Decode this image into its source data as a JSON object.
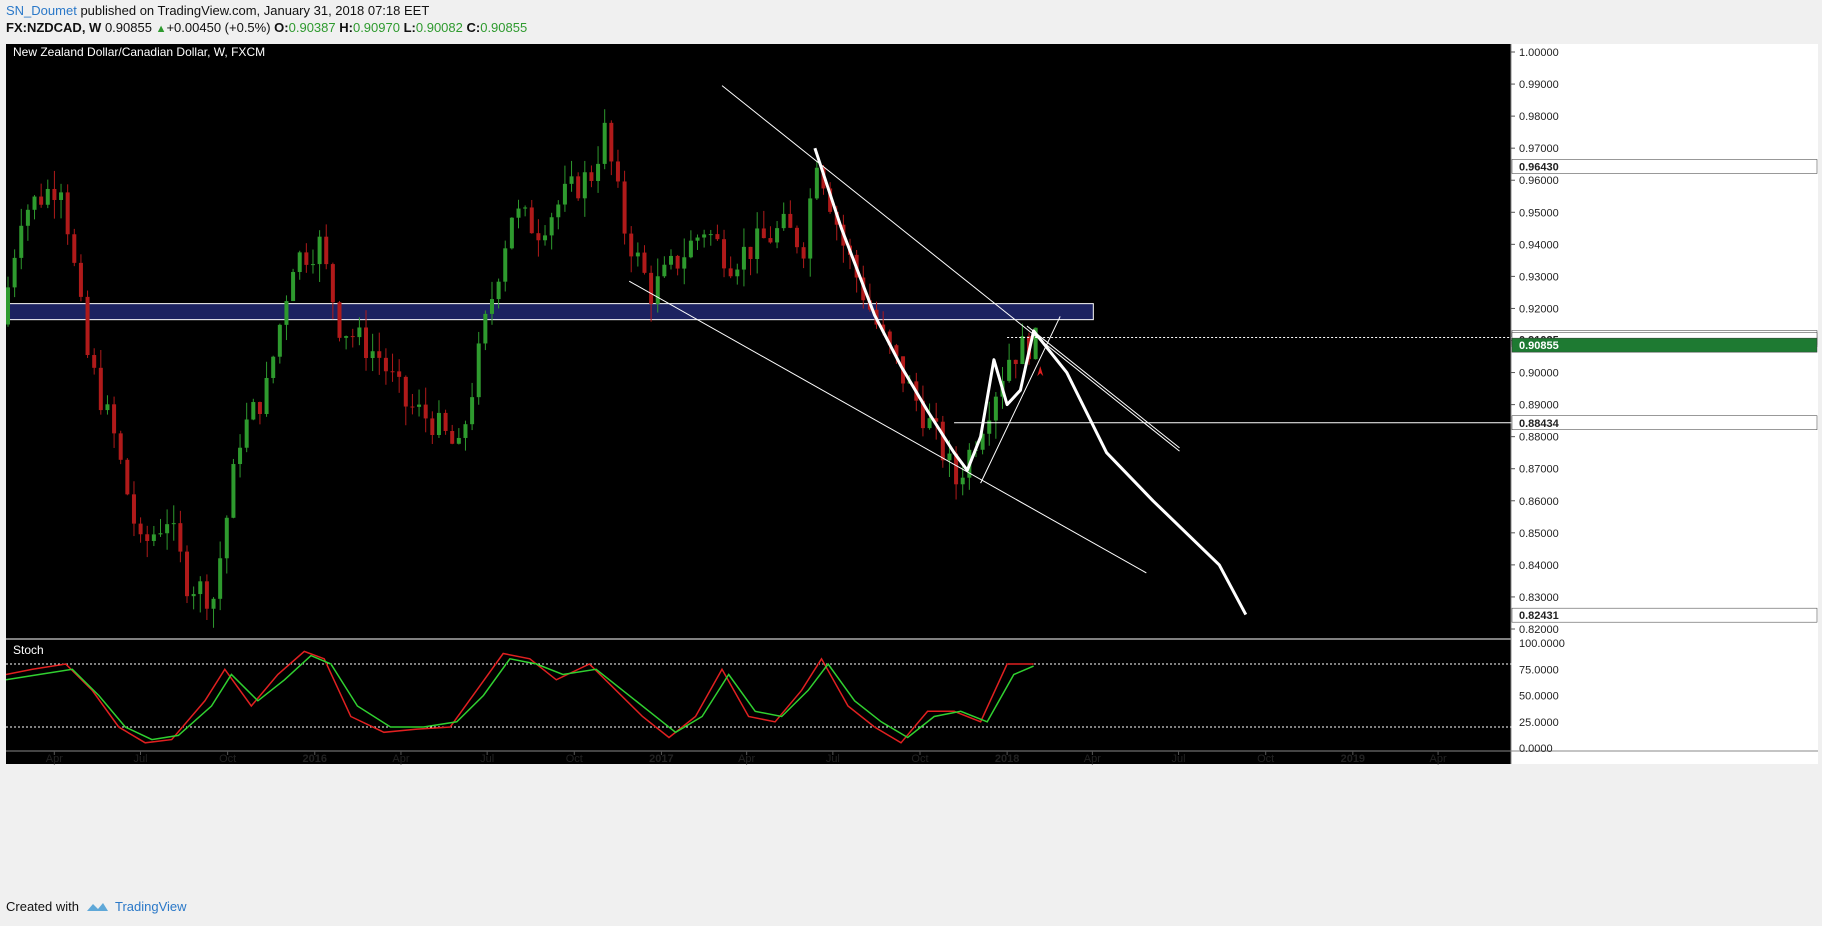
{
  "header": {
    "author": "SN_Doumet",
    "published": "published on TradingView.com, January 31, 2018 07:18 EET",
    "symbol": "FX:NZDCAD, W",
    "last": "0.90855",
    "change": "+0.00450 (+0.5%)",
    "o_label": "O:",
    "o_value": "0.90387",
    "h_label": "H:",
    "h_value": "0.90970",
    "l_label": "L:",
    "l_value": "0.90082",
    "c_label": "C:",
    "c_value": "0.90855"
  },
  "footer": {
    "created_with": "Created with",
    "brand": "TradingView"
  },
  "colors": {
    "background": "#000000",
    "up": "#2e9a2e",
    "down": "#b01a1a",
    "zone": "#1c2260",
    "axis_bg": "#ffffff",
    "last_price": "#1e7a32",
    "stoch_k": "#e02020",
    "stoch_d": "#30d030"
  },
  "chart_data": {
    "type": "candlestick",
    "title": "New Zealand Dollar/Canadian Dollar, W, FXCM",
    "x_range": [
      "2015-02-09",
      "2019-06-17"
    ],
    "y_range": [
      0.8175,
      1.0025
    ],
    "y_ticks": [
      "1.00000",
      "0.99000",
      "0.98000",
      "0.97000",
      "0.96000",
      "0.95000",
      "0.94000",
      "0.93000",
      "0.92000",
      "0.91000",
      "0.90000",
      "0.89000",
      "0.88000",
      "0.87000",
      "0.86000",
      "0.85000",
      "0.84000",
      "0.83000",
      "0.82000"
    ],
    "x_ticks": [
      {
        "date": "2015-04-01",
        "label": "Apr"
      },
      {
        "date": "2015-07-01",
        "label": "Jul"
      },
      {
        "date": "2015-10-01",
        "label": "Oct"
      },
      {
        "date": "2016-01-01",
        "label": "2016"
      },
      {
        "date": "2016-04-01",
        "label": "Apr"
      },
      {
        "date": "2016-07-01",
        "label": "Jul"
      },
      {
        "date": "2016-10-01",
        "label": "Oct"
      },
      {
        "date": "2017-01-01",
        "label": "2017"
      },
      {
        "date": "2017-04-01",
        "label": "Apr"
      },
      {
        "date": "2017-07-01",
        "label": "Jul"
      },
      {
        "date": "2017-10-01",
        "label": "Oct"
      },
      {
        "date": "2018-01-01",
        "label": "2018"
      },
      {
        "date": "2018-04-01",
        "label": "Apr"
      },
      {
        "date": "2018-07-01",
        "label": "Jul"
      },
      {
        "date": "2018-10-01",
        "label": "Oct"
      },
      {
        "date": "2019-01-01",
        "label": "2019"
      },
      {
        "date": "2019-04-01",
        "label": "Apr"
      }
    ],
    "price_path": [
      [
        "2015-02-09",
        0.915
      ],
      [
        "2015-03-02",
        0.95
      ],
      [
        "2015-04-13",
        0.96
      ],
      [
        "2015-05-11",
        0.905
      ],
      [
        "2015-06-08",
        0.88
      ],
      [
        "2015-07-06",
        0.845
      ],
      [
        "2015-08-03",
        0.855
      ],
      [
        "2015-08-24",
        0.835
      ],
      [
        "2015-09-21",
        0.83
      ],
      [
        "2015-10-19",
        0.88
      ],
      [
        "2015-11-16",
        0.895
      ],
      [
        "2015-12-14",
        0.935
      ],
      [
        "2016-01-11",
        0.94
      ],
      [
        "2016-02-01",
        0.915
      ],
      [
        "2016-03-14",
        0.905
      ],
      [
        "2016-04-11",
        0.89
      ],
      [
        "2016-05-09",
        0.885
      ],
      [
        "2016-06-06",
        0.875
      ],
      [
        "2016-07-04",
        0.915
      ],
      [
        "2016-08-01",
        0.95
      ],
      [
        "2016-08-29",
        0.945
      ],
      [
        "2016-09-26",
        0.955
      ],
      [
        "2016-10-24",
        0.962
      ],
      [
        "2016-11-07",
        0.975
      ],
      [
        "2016-11-28",
        0.945
      ],
      [
        "2016-12-26",
        0.925
      ],
      [
        "2017-01-23",
        0.935
      ],
      [
        "2017-02-20",
        0.945
      ],
      [
        "2017-03-20",
        0.935
      ],
      [
        "2017-04-17",
        0.94
      ],
      [
        "2017-05-15",
        0.945
      ],
      [
        "2017-06-05",
        0.94
      ],
      [
        "2017-06-19",
        0.968
      ],
      [
        "2017-07-17",
        0.94
      ],
      [
        "2017-08-07",
        0.925
      ],
      [
        "2017-08-28",
        0.91
      ],
      [
        "2017-09-25",
        0.895
      ],
      [
        "2017-10-23",
        0.88
      ],
      [
        "2017-11-13",
        0.866
      ],
      [
        "2017-11-27",
        0.875
      ],
      [
        "2017-12-11",
        0.885
      ],
      [
        "2017-12-25",
        0.895
      ],
      [
        "2018-01-08",
        0.905
      ],
      [
        "2018-01-29",
        0.909
      ]
    ],
    "horizontal_line": {
      "value": 0.88434,
      "label": "0.88434"
    },
    "horizontal_dotted": {
      "value": 0.91094,
      "label": "0.91094"
    },
    "marker_label": {
      "value": 0.91025,
      "label": "0.91025"
    },
    "last_price": {
      "value": 0.90855,
      "label": "0.90855"
    },
    "projection_label": {
      "value": 0.82431,
      "label": "0.82431"
    },
    "extra_label": {
      "value": 0.9643,
      "label": "0.96430"
    },
    "zone": {
      "from": "2015-02-09",
      "to": "2018-04-02",
      "low": 0.9165,
      "high": 0.9215
    },
    "trendlines": [
      {
        "x1": "2017-03-06",
        "y1": 0.9895,
        "x2": "2018-07-02",
        "y2": 0.8755
      },
      {
        "x1": "2016-11-28",
        "y1": 0.9285,
        "x2": "2018-05-28",
        "y2": 0.8375
      },
      {
        "x1": "2017-12-04",
        "y1": 0.8655,
        "x2": "2018-02-26",
        "y2": 0.9175
      },
      {
        "x1": "2018-01-22",
        "y1": 0.9145,
        "x2": "2018-07-02",
        "y2": 0.8765
      }
    ],
    "projection_path": [
      [
        "2017-06-12",
        0.97
      ],
      [
        "2017-07-10",
        0.945
      ],
      [
        "2017-08-14",
        0.918
      ],
      [
        "2017-09-11",
        0.902
      ],
      [
        "2017-10-09",
        0.888
      ],
      [
        "2017-11-06",
        0.875
      ],
      [
        "2017-11-20",
        0.8695
      ],
      [
        "2017-12-04",
        0.88
      ],
      [
        "2017-12-18",
        0.904
      ],
      [
        "2018-01-01",
        0.89
      ],
      [
        "2018-01-15",
        0.8945
      ],
      [
        "2018-01-29",
        0.913
      ],
      [
        "2018-03-05",
        0.9
      ],
      [
        "2018-04-16",
        0.875
      ],
      [
        "2018-06-04",
        0.86
      ],
      [
        "2018-08-13",
        0.84
      ],
      [
        "2018-09-10",
        0.8245
      ]
    ],
    "stochastic": {
      "label": "Stoch",
      "y_ticks": [
        "100.0000",
        "75.0000",
        "50.0000",
        "25.0000",
        "0.0000"
      ],
      "levels": [
        80,
        20
      ],
      "k": [
        [
          "2015-02-09",
          70
        ],
        [
          "2015-03-09",
          75
        ],
        [
          "2015-04-13",
          80
        ],
        [
          "2015-05-11",
          55
        ],
        [
          "2015-06-08",
          20
        ],
        [
          "2015-07-06",
          5
        ],
        [
          "2015-08-03",
          8
        ],
        [
          "2015-09-07",
          45
        ],
        [
          "2015-09-28",
          75
        ],
        [
          "2015-10-26",
          40
        ],
        [
          "2015-11-23",
          70
        ],
        [
          "2015-12-21",
          92
        ],
        [
          "2016-01-11",
          85
        ],
        [
          "2016-02-08",
          30
        ],
        [
          "2016-03-14",
          15
        ],
        [
          "2016-04-18",
          18
        ],
        [
          "2016-05-23",
          20
        ],
        [
          "2016-06-20",
          55
        ],
        [
          "2016-07-18",
          90
        ],
        [
          "2016-08-15",
          85
        ],
        [
          "2016-09-12",
          65
        ],
        [
          "2016-10-17",
          80
        ],
        [
          "2016-11-14",
          55
        ],
        [
          "2016-12-12",
          30
        ],
        [
          "2017-01-09",
          10
        ],
        [
          "2017-02-06",
          30
        ],
        [
          "2017-03-06",
          75
        ],
        [
          "2017-04-03",
          30
        ],
        [
          "2017-05-01",
          25
        ],
        [
          "2017-05-29",
          55
        ],
        [
          "2017-06-19",
          85
        ],
        [
          "2017-07-17",
          40
        ],
        [
          "2017-08-14",
          20
        ],
        [
          "2017-09-11",
          5
        ],
        [
          "2017-10-09",
          35
        ],
        [
          "2017-11-06",
          35
        ],
        [
          "2017-12-04",
          25
        ],
        [
          "2018-01-01",
          80
        ],
        [
          "2018-01-29",
          80
        ]
      ],
      "d": [
        [
          "2015-02-09",
          65
        ],
        [
          "2015-03-16",
          70
        ],
        [
          "2015-04-20",
          75
        ],
        [
          "2015-05-18",
          50
        ],
        [
          "2015-06-15",
          20
        ],
        [
          "2015-07-13",
          8
        ],
        [
          "2015-08-10",
          12
        ],
        [
          "2015-09-14",
          40
        ],
        [
          "2015-10-05",
          70
        ],
        [
          "2015-11-02",
          45
        ],
        [
          "2015-11-30",
          65
        ],
        [
          "2015-12-28",
          88
        ],
        [
          "2016-01-18",
          80
        ],
        [
          "2016-02-15",
          40
        ],
        [
          "2016-03-21",
          20
        ],
        [
          "2016-04-25",
          20
        ],
        [
          "2016-05-30",
          25
        ],
        [
          "2016-06-27",
          50
        ],
        [
          "2016-07-25",
          85
        ],
        [
          "2016-08-22",
          80
        ],
        [
          "2016-09-19",
          70
        ],
        [
          "2016-10-24",
          75
        ],
        [
          "2016-11-21",
          55
        ],
        [
          "2016-12-19",
          35
        ],
        [
          "2017-01-16",
          15
        ],
        [
          "2017-02-13",
          30
        ],
        [
          "2017-03-13",
          70
        ],
        [
          "2017-04-10",
          35
        ],
        [
          "2017-05-08",
          30
        ],
        [
          "2017-06-05",
          55
        ],
        [
          "2017-06-26",
          80
        ],
        [
          "2017-07-24",
          45
        ],
        [
          "2017-08-21",
          25
        ],
        [
          "2017-09-18",
          10
        ],
        [
          "2017-10-16",
          30
        ],
        [
          "2017-11-13",
          35
        ],
        [
          "2017-12-11",
          25
        ],
        [
          "2018-01-08",
          70
        ],
        [
          "2018-01-29",
          78
        ]
      ]
    }
  }
}
